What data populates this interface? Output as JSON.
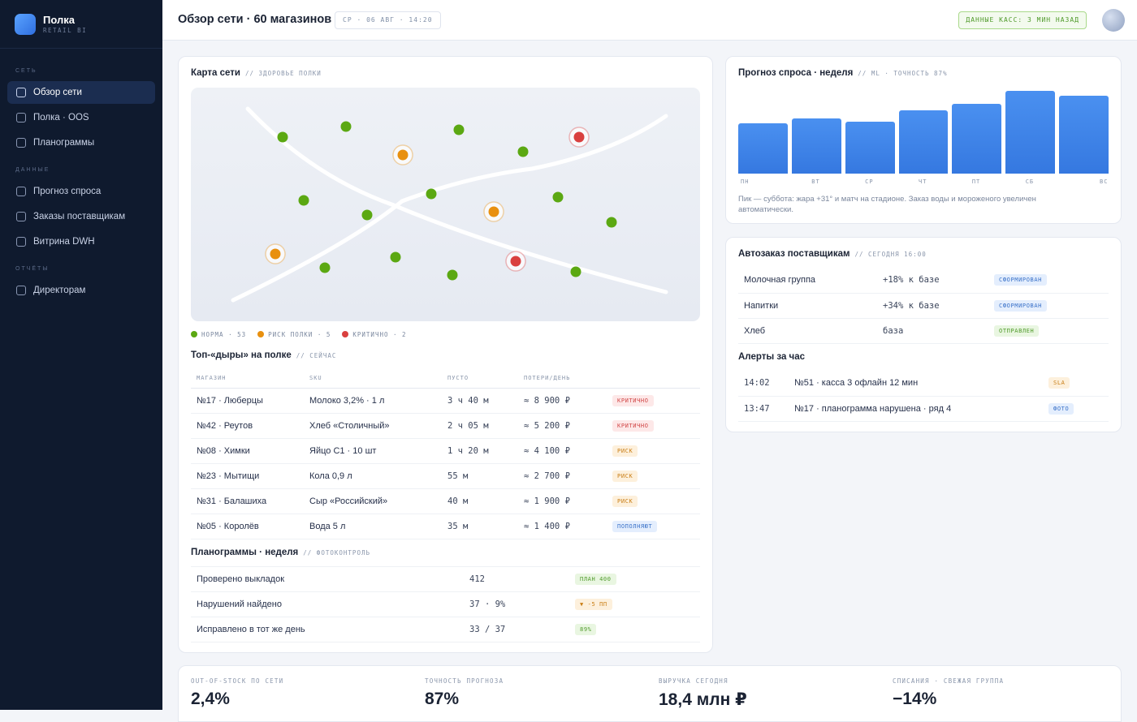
{
  "brand": {
    "name": "Полка",
    "sub": "RETAIL BI"
  },
  "nav": {
    "sections": [
      {
        "title": "СЕТЬ",
        "items": [
          "Обзор сети",
          "Полка · OOS",
          "Планограммы"
        ]
      },
      {
        "title": "ДАННЫЕ",
        "items": [
          "Прогноз спроса",
          "Заказы поставщикам",
          "Витрина DWH"
        ]
      },
      {
        "title": "ОТЧЁТЫ",
        "items": [
          "Директорам"
        ]
      }
    ],
    "active": "Обзор сети"
  },
  "header": {
    "title": "Обзор сети · 60 магазинов",
    "date": "СР · 06 АВГ · 14:20",
    "data_status": "ДАННЫЕ КАСС: 3 МИН НАЗАД"
  },
  "map_card": {
    "title": "Карта сети",
    "subtitle": "// ЗДОРОВЬЕ ПОЛКИ",
    "legend": [
      {
        "label": "НОРМА · 53",
        "color": "#5ba812"
      },
      {
        "label": "РИСК ПОЛКИ · 5",
        "color": "#e8900f"
      },
      {
        "label": "КРИТИЧНО · 2",
        "color": "#d9403f"
      }
    ],
    "colors": {
      "ok": "#5ba812",
      "risk": "#e8900f",
      "crit": "#d9403f"
    }
  },
  "gaps": {
    "title": "Топ-«дыры» на полке",
    "subtitle": "// СЕЙЧАС",
    "columns": [
      "МАГАЗИН",
      "SKU",
      "ПУСТО",
      "ПОТЕРИ/ДЕНЬ",
      ""
    ],
    "rows": [
      {
        "store": "№17 · Люберцы",
        "sku": "Молоко 3,2% · 1 л",
        "empty": "3 ч 40 м",
        "loss": "≈ 8 900 ₽",
        "status": "КРИТИЧНО",
        "kind": "b-red"
      },
      {
        "store": "№42 · Реутов",
        "sku": "Хлеб «Столичный»",
        "empty": "2 ч 05 м",
        "loss": "≈ 5 200 ₽",
        "status": "КРИТИЧНО",
        "kind": "b-red"
      },
      {
        "store": "№08 · Химки",
        "sku": "Яйцо С1 · 10 шт",
        "empty": "1 ч 20 м",
        "loss": "≈ 4 100 ₽",
        "status": "РИСК",
        "kind": "b-orange"
      },
      {
        "store": "№23 · Мытищи",
        "sku": "Кола 0,9 л",
        "empty": "55 м",
        "loss": "≈ 2 700 ₽",
        "status": "РИСК",
        "kind": "b-orange"
      },
      {
        "store": "№31 · Балашиха",
        "sku": "Сыр «Российский»",
        "empty": "40 м",
        "loss": "≈ 1 900 ₽",
        "status": "РИСК",
        "kind": "b-orange"
      },
      {
        "store": "№05 · Королёв",
        "sku": "Вода 5 л",
        "empty": "35 м",
        "loss": "≈ 1 400 ₽",
        "status": "ПОПОЛНЯЮТ",
        "kind": "b-blue"
      }
    ]
  },
  "planograms": {
    "title": "Планограммы · неделя",
    "subtitle": "// ФОТОКОНТРОЛЬ",
    "rows": [
      {
        "label": "Проверено выкладок",
        "value": "412",
        "badge": "ПЛАН 400",
        "kind": "b-green"
      },
      {
        "label": "Нарушений найдено",
        "value": "37 · 9%",
        "badge": "▼ -5 ПП",
        "kind": "b-orange"
      },
      {
        "label": "Исправлено в тот же день",
        "value": "33 / 37",
        "badge": "89%",
        "kind": "b-green"
      }
    ]
  },
  "forecast": {
    "title": "Прогноз спроса · неделя",
    "subtitle": "// ML · ТОЧНОСТЬ 87%",
    "note": "Пик — суббота: жара +31° и матч на стадионе. Заказ воды и мороженого увеличен автоматически."
  },
  "chart_data": {
    "type": "bar",
    "title": "Прогноз спроса · неделя",
    "categories": [
      "ПН",
      "ВТ",
      "СР",
      "ЧТ",
      "ПТ",
      "СБ",
      "ВС"
    ],
    "values": [
      61,
      67,
      63,
      76,
      84,
      100,
      94
    ],
    "ylim": [
      0,
      100
    ]
  },
  "autoorder": {
    "title": "Автозаказ поставщикам",
    "subtitle": "// СЕГОДНЯ 16:00",
    "rows": [
      {
        "group": "Молочная группа",
        "delta": "+18% к базе",
        "status": "СФОРМИРОВАН",
        "kind": "b-blue"
      },
      {
        "group": "Напитки",
        "delta": "+34% к базе",
        "status": "СФОРМИРОВАН",
        "kind": "b-blue"
      },
      {
        "group": "Хлеб",
        "delta": "база",
        "status": "ОТПРАВЛЕН",
        "kind": "b-green"
      }
    ]
  },
  "alerts": {
    "title": "Алерты за час",
    "rows": [
      {
        "time": "14:02",
        "text": "№51 · касса 3 офлайн 12 мин",
        "tag": "SLA",
        "kind": "b-orange"
      },
      {
        "time": "13:47",
        "text": "№17 · планограмма нарушена · ряд 4",
        "tag": "ФОТО",
        "kind": "b-blue"
      }
    ]
  },
  "kpis": [
    {
      "label": "OUT-OF-STOCK ПО СЕТИ",
      "value": "2,4%"
    },
    {
      "label": "ТОЧНОСТЬ ПРОГНОЗА",
      "value": "87%"
    },
    {
      "label": "ВЫРУЧКА СЕГОДНЯ",
      "value": "18,4 млн ₽"
    },
    {
      "label": "СПИСАНИЯ · СВЕЖАЯ ГРУППА",
      "value": "−14%"
    }
  ]
}
